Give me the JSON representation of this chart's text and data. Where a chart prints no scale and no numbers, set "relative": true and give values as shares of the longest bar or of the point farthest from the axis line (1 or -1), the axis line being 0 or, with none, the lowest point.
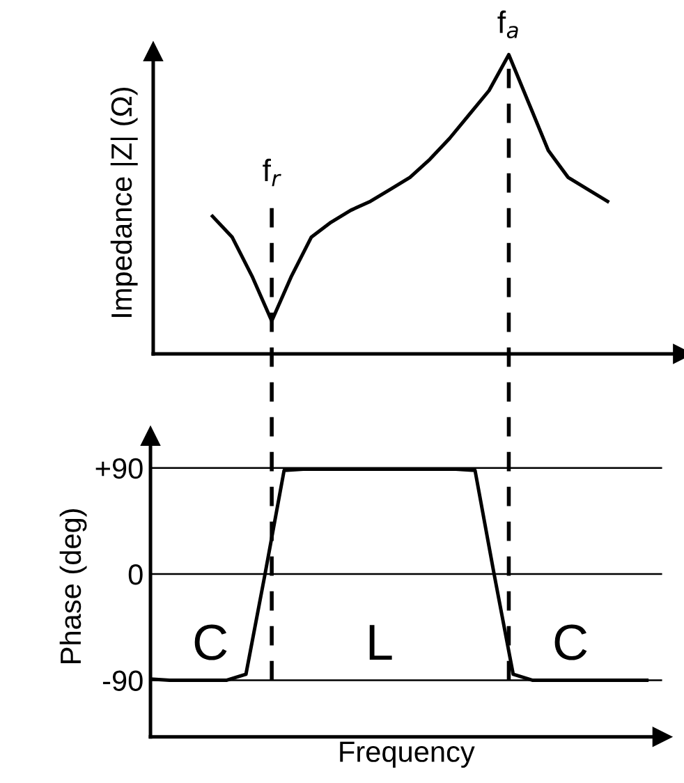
{
  "chart_data": [
    {
      "type": "line",
      "ylabel": "Impedance |Z| (Ω)",
      "relative": true,
      "tick_labels": false,
      "grid": false,
      "legend": false,
      "categories": [
        null,
        null,
        null,
        null,
        null,
        null,
        null,
        null,
        null,
        null,
        null,
        null,
        null,
        null,
        null,
        null,
        null,
        null,
        null,
        null,
        null,
        null,
        null,
        null,
        null,
        null,
        null
      ],
      "series": [
        {
          "color": "#000000",
          "values": [
            null,
            null,
            null,
            0.46,
            0.39,
            0.26,
            0.11,
            0.26,
            0.39,
            0.44,
            0.48,
            0.51,
            0.55,
            0.59,
            0.65,
            0.72,
            0.8,
            0.88,
            1.0,
            0.84,
            0.68,
            0.59,
            0.55,
            0.51,
            null,
            null,
            null
          ]
        }
      ],
      "annotations": [
        "f$_{r}$",
        "f$_{a}$"
      ]
    },
    {
      "type": "line",
      "ylabel": "Phase (deg)",
      "xlabel": "Frequency",
      "tick_labels": "y",
      "grid": "y",
      "legend": false,
      "categories": [
        null,
        null,
        null,
        null,
        null,
        null,
        null,
        null,
        null,
        null,
        null,
        null,
        null,
        null,
        null,
        null,
        null,
        null,
        null,
        null,
        null,
        null,
        null,
        null,
        null,
        null,
        null
      ],
      "ylim": [
        -138,
        117
      ],
      "yticks": [
        {
          "value": 90,
          "label": "+90"
        },
        0,
        -90
      ],
      "series": [
        {
          "color": "#000000",
          "values": [
            -89,
            -90,
            -90,
            -90,
            -90,
            -85,
            0,
            88,
            89,
            89,
            89,
            89,
            89,
            89,
            89,
            89,
            89,
            88,
            0,
            -85,
            -90,
            -90,
            -90,
            -90,
            -90,
            -90,
            -90
          ]
        }
      ],
      "annotations": [
        "C",
        "L",
        "C"
      ]
    }
  ]
}
